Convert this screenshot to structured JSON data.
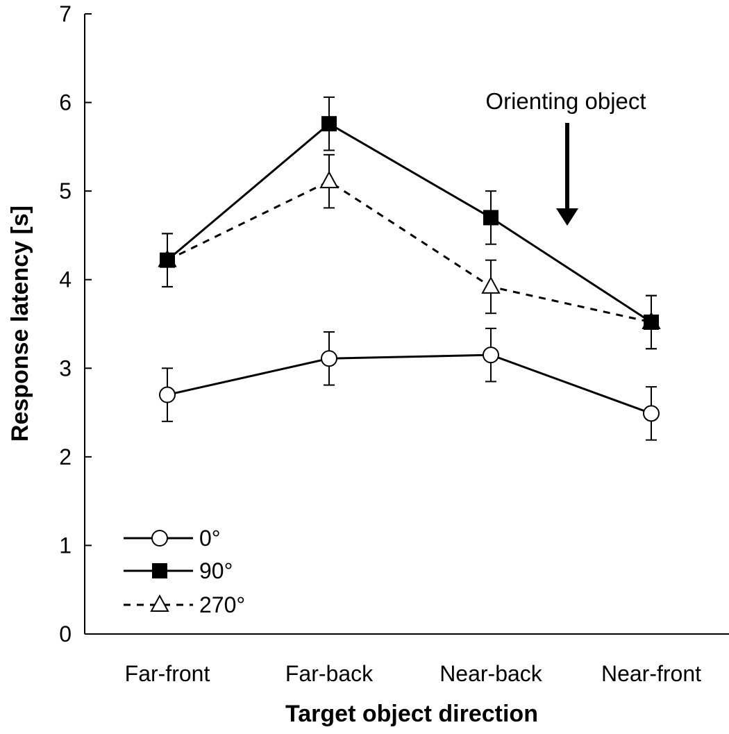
{
  "chart_data": {
    "type": "line",
    "title": "",
    "xlabel": "Target object direction",
    "ylabel": "Response latency [s]",
    "categories": [
      "Far-front",
      "Far-back",
      "Near-back",
      "Near-front"
    ],
    "ylim": [
      0,
      7
    ],
    "yticks": [
      0,
      1,
      2,
      3,
      4,
      5,
      6,
      7
    ],
    "grid": false,
    "legend_position": "bottom-left",
    "series": [
      {
        "name": "0°",
        "values": [
          2.7,
          3.11,
          3.15,
          2.49
        ],
        "errors": [
          0.3,
          0.3,
          0.3,
          0.3
        ],
        "marker": "open-circle",
        "line_style": "solid"
      },
      {
        "name": "90°",
        "values": [
          4.22,
          5.76,
          4.7,
          3.52
        ],
        "errors": [
          0.3,
          0.3,
          0.3,
          0.3
        ],
        "marker": "filled-square",
        "line_style": "solid"
      },
      {
        "name": "270°",
        "values": [
          4.22,
          5.11,
          3.92,
          3.52
        ],
        "errors": [
          0.3,
          0.3,
          0.3,
          0.3
        ],
        "marker": "open-triangle",
        "line_style": "dashed"
      }
    ],
    "annotations": [
      {
        "text": "Orienting object",
        "arrow": "down",
        "points_to_x_between": [
          "Near-back",
          "Near-front"
        ]
      }
    ]
  }
}
